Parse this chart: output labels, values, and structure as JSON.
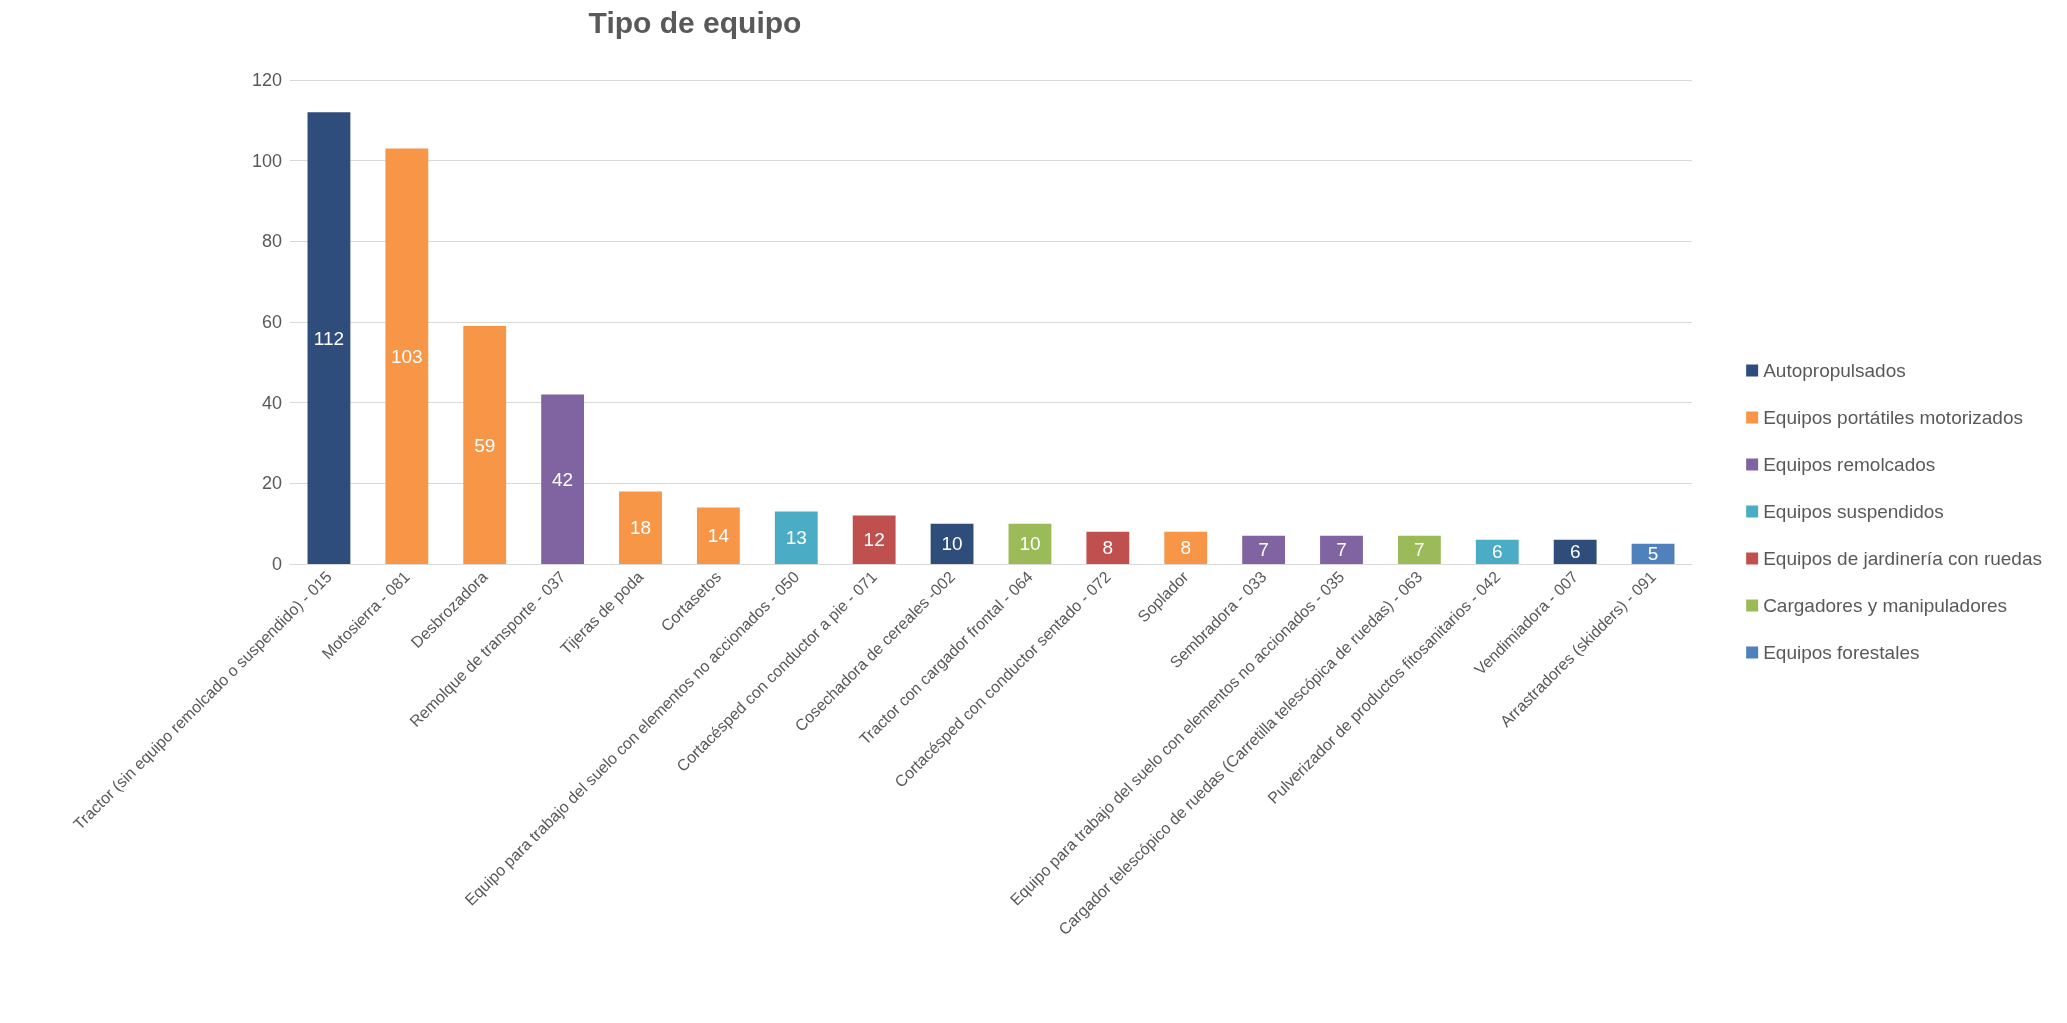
{
  "chart_data": {
    "type": "bar",
    "title": "Tipo de equipo",
    "stacked": true,
    "data_labels": true,
    "grid": "y",
    "legend": "right",
    "categories": [
      "Tractor (sin equipo remolcado o suspendido) - 015",
      "Motosierra - 081",
      "Desbrozadora",
      "Remolque de transporte - 037",
      "Tijeras de poda",
      "Cortasetos",
      "Equipo para trabajo del suelo con elementos no accionados - 050",
      "Cortacésped con conductor a pie - 071",
      "Cosechadora de cereales -002",
      "Tractor con cargador frontal - 064",
      "Cortacésped con conductor sentado - 072",
      "Soplador",
      "Sembradora - 033",
      "Equipo para trabajo del suelo con elementos no accionados - 035",
      "Cargador telescópico de ruedas (Carretilla telescópica de ruedas) - 063",
      "Pulverizador de productos fitosanitarios - 042",
      "Vendimiadora - 007",
      "Arrastradores (skidders) - 091"
    ],
    "ylim": [
      0,
      120
    ],
    "yticks": [
      0,
      20,
      40,
      60,
      80,
      100,
      120
    ],
    "series": [
      {
        "name": "Autopropulsados",
        "color": "#2e4d7b",
        "values": [
          112,
          null,
          null,
          null,
          null,
          null,
          null,
          null,
          10,
          null,
          null,
          null,
          null,
          null,
          null,
          null,
          6,
          null
        ]
      },
      {
        "name": "Equipos portátiles motorizados",
        "color": "#f79646",
        "values": [
          null,
          103,
          59,
          null,
          18,
          14,
          null,
          null,
          null,
          null,
          null,
          8,
          null,
          null,
          null,
          null,
          null,
          null
        ]
      },
      {
        "name": "Equipos remolcados",
        "color": "#8064a2",
        "values": [
          null,
          null,
          null,
          42,
          null,
          null,
          null,
          null,
          null,
          null,
          null,
          null,
          7,
          7,
          null,
          null,
          null,
          null
        ]
      },
      {
        "name": "Equipos suspendidos",
        "color": "#4bacc6",
        "values": [
          null,
          null,
          null,
          null,
          null,
          null,
          13,
          null,
          null,
          null,
          null,
          null,
          null,
          null,
          null,
          6,
          null,
          null
        ]
      },
      {
        "name": "Equipos de jardinería con ruedas",
        "color": "#c0504d",
        "values": [
          null,
          null,
          null,
          null,
          null,
          null,
          null,
          12,
          null,
          null,
          8,
          null,
          null,
          null,
          null,
          null,
          null,
          null
        ]
      },
      {
        "name": "Cargadores y manipuladores",
        "color": "#9bbb59",
        "values": [
          null,
          null,
          null,
          null,
          null,
          null,
          null,
          null,
          null,
          10,
          null,
          null,
          null,
          null,
          7,
          null,
          null,
          null
        ]
      },
      {
        "name": "Equipos forestales",
        "color": "#4f81bd",
        "values": [
          null,
          null,
          null,
          null,
          null,
          null,
          null,
          null,
          null,
          null,
          null,
          null,
          null,
          null,
          null,
          null,
          null,
          5
        ]
      }
    ]
  }
}
